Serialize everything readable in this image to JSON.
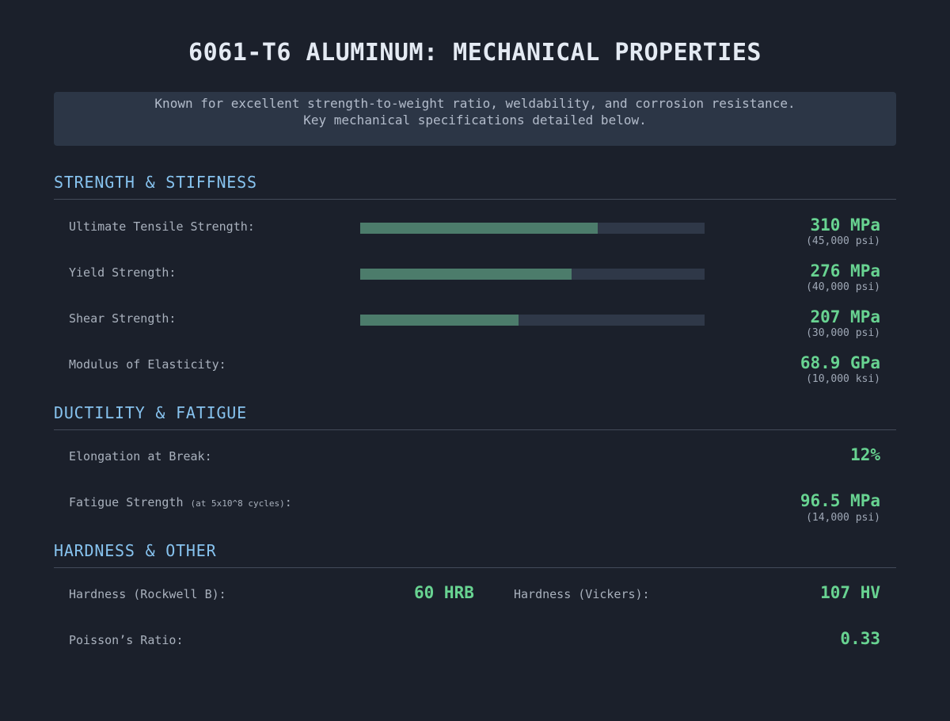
{
  "title": "6061-T6 ALUMINUM: MECHANICAL PROPERTIES",
  "intro": {
    "line1": "Known for excellent strength-to-weight ratio, weldability, and corrosion resistance.",
    "line2": "Key mechanical specifications detailed below."
  },
  "sections": {
    "strength": {
      "heading": "Strength & Stiffness",
      "rows": [
        {
          "label": "Ultimate Tensile Strength:",
          "value": "310 MPa",
          "sub": "(45,000 psi)",
          "bar_fraction": 0.69
        },
        {
          "label": "Yield Strength:",
          "value": "276 MPa",
          "sub": "(40,000 psi)",
          "bar_fraction": 0.614
        },
        {
          "label": "Shear Strength:",
          "value": "207 MPa",
          "sub": "(30,000 psi)",
          "bar_fraction": 0.46
        },
        {
          "label": "Modulus of Elasticity:",
          "value": "68.9 GPa",
          "sub": "(10,000 ksi)"
        }
      ]
    },
    "ductility": {
      "heading": "Ductility & Fatigue",
      "elongation": {
        "label": "Elongation at Break:",
        "value": "12%"
      },
      "fatigue": {
        "label": "Fatigue Strength",
        "note": "(at 5x10^8 cycles)",
        "colon": ":",
        "value": "96.5 MPa",
        "sub": "(14,000 psi)"
      }
    },
    "hardness": {
      "heading": "Hardness & Other",
      "rockwell": {
        "label": "Hardness (Rockwell B):",
        "value": "60 HRB"
      },
      "vickers": {
        "label": "Hardness (Vickers):",
        "value": "107 HV"
      },
      "poisson": {
        "label": "Poisson’s Ratio:",
        "value": "0.33"
      }
    }
  },
  "colors": {
    "background": "#1b202b",
    "accent_value": "#68d391",
    "heading": "#87c3ef",
    "bar_fill": "#4c7c6b",
    "bar_track": "#2f3848"
  }
}
